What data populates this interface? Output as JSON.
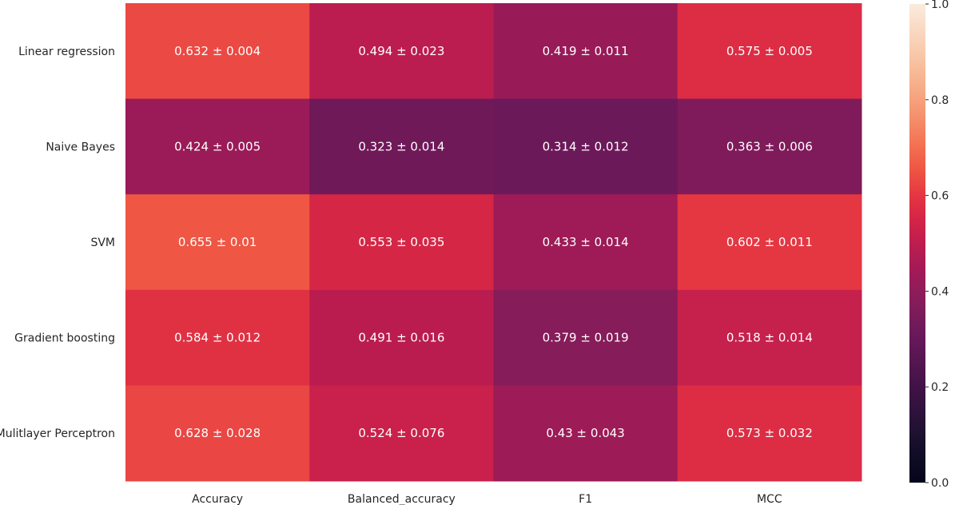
{
  "chart_data": {
    "type": "heatmap",
    "title": "",
    "xlabel": "",
    "ylabel": "",
    "x_categories": [
      "Accuracy",
      "Balanced_accuracy",
      "F1",
      "MCC"
    ],
    "y_categories": [
      "Linear regression",
      "Naive Bayes",
      "SVM",
      "Gradient boosting",
      "Mulitlayer Perceptron"
    ],
    "values": [
      [
        0.632,
        0.494,
        0.419,
        0.575
      ],
      [
        0.424,
        0.323,
        0.314,
        0.363
      ],
      [
        0.655,
        0.553,
        0.433,
        0.602
      ],
      [
        0.584,
        0.491,
        0.379,
        0.518
      ],
      [
        0.628,
        0.524,
        0.43,
        0.573
      ]
    ],
    "annotations": [
      [
        "0.632 ± 0.004",
        "0.494 ± 0.023",
        "0.419 ± 0.011",
        "0.575 ± 0.005"
      ],
      [
        "0.424 ± 0.005",
        "0.323 ± 0.014",
        "0.314 ± 0.012",
        "0.363 ± 0.006"
      ],
      [
        "0.655 ± 0.01",
        "0.553 ± 0.035",
        "0.433 ± 0.014",
        "0.602 ± 0.011"
      ],
      [
        "0.584 ± 0.012",
        "0.491 ± 0.016",
        "0.379 ± 0.019",
        "0.518 ± 0.014"
      ],
      [
        "0.628 ± 0.028",
        "0.524 ± 0.076",
        "0.43 ± 0.043",
        "0.573 ± 0.032"
      ]
    ],
    "colorbar": {
      "range": [
        0.0,
        1.0
      ],
      "ticks": [
        "0.0",
        "0.2",
        "0.4",
        "0.6",
        "0.8",
        "1.0"
      ],
      "colormap": "rocket"
    },
    "grid": false
  }
}
